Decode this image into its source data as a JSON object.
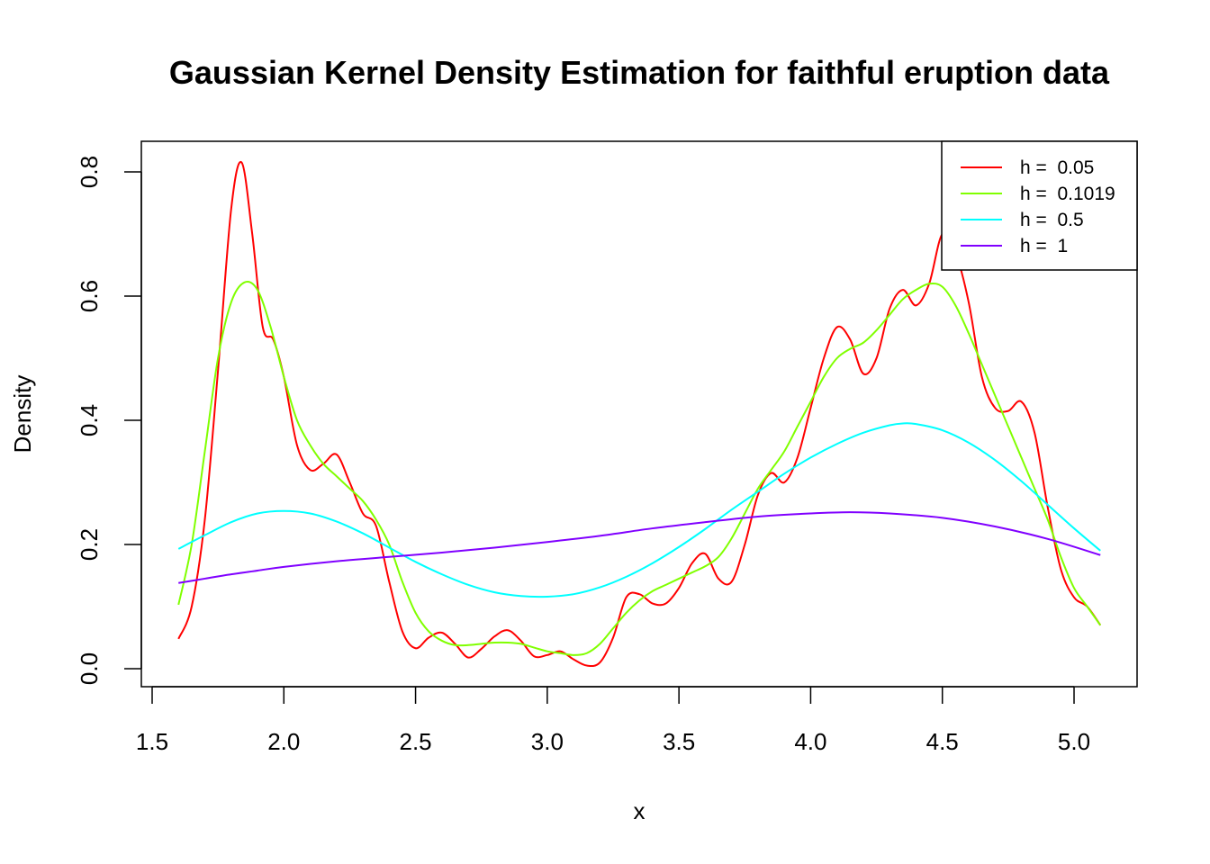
{
  "chart_data": {
    "type": "line",
    "title": "Gaussian Kernel Density Estimation for faithful eruption data",
    "xlabel": "x",
    "ylabel": "Density",
    "xlim": [
      1.6,
      5.1
    ],
    "ylim": [
      0.0,
      0.82
    ],
    "xticks": [
      1.5,
      2.0,
      2.5,
      3.0,
      3.5,
      4.0,
      4.5,
      5.0
    ],
    "xtick_labels": [
      "1.5",
      "2.0",
      "2.5",
      "3.0",
      "3.5",
      "4.0",
      "4.5",
      "5.0"
    ],
    "yticks": [
      0.0,
      0.2,
      0.4,
      0.6,
      0.8
    ],
    "ytick_labels": [
      "0.0",
      "0.2",
      "0.4",
      "0.6",
      "0.8"
    ],
    "grid": false,
    "legend_position": "top-right",
    "series": [
      {
        "name": "h =  0.05",
        "color": "#FF0000",
        "x": [
          1.6,
          1.65,
          1.7,
          1.75,
          1.8,
          1.84,
          1.88,
          1.92,
          1.96,
          2.0,
          2.05,
          2.1,
          2.15,
          2.2,
          2.25,
          2.3,
          2.35,
          2.4,
          2.45,
          2.5,
          2.55,
          2.6,
          2.65,
          2.7,
          2.75,
          2.8,
          2.85,
          2.9,
          2.95,
          3.0,
          3.05,
          3.1,
          3.15,
          3.2,
          3.25,
          3.3,
          3.35,
          3.4,
          3.45,
          3.5,
          3.55,
          3.6,
          3.65,
          3.7,
          3.75,
          3.8,
          3.85,
          3.9,
          3.95,
          4.0,
          4.05,
          4.1,
          4.15,
          4.2,
          4.25,
          4.3,
          4.35,
          4.4,
          4.45,
          4.5,
          4.55,
          4.6,
          4.65,
          4.7,
          4.75,
          4.8,
          4.85,
          4.9,
          4.95,
          5.0,
          5.05,
          5.1
        ],
        "y": [
          0.048,
          0.1,
          0.24,
          0.48,
          0.74,
          0.815,
          0.7,
          0.55,
          0.53,
          0.47,
          0.36,
          0.32,
          0.33,
          0.345,
          0.3,
          0.25,
          0.23,
          0.14,
          0.06,
          0.033,
          0.05,
          0.058,
          0.04,
          0.018,
          0.032,
          0.052,
          0.062,
          0.045,
          0.02,
          0.022,
          0.028,
          0.015,
          0.005,
          0.01,
          0.05,
          0.115,
          0.12,
          0.105,
          0.105,
          0.13,
          0.17,
          0.185,
          0.145,
          0.14,
          0.2,
          0.28,
          0.315,
          0.3,
          0.34,
          0.42,
          0.5,
          0.55,
          0.53,
          0.475,
          0.5,
          0.58,
          0.61,
          0.585,
          0.62,
          0.7,
          0.67,
          0.59,
          0.47,
          0.42,
          0.415,
          0.43,
          0.38,
          0.26,
          0.16,
          0.115,
          0.1,
          0.07
        ]
      },
      {
        "name": "h =  0.1019",
        "color": "#80FF00",
        "x": [
          1.6,
          1.65,
          1.7,
          1.75,
          1.8,
          1.85,
          1.9,
          1.95,
          2.0,
          2.05,
          2.1,
          2.15,
          2.2,
          2.25,
          2.3,
          2.35,
          2.4,
          2.45,
          2.5,
          2.55,
          2.6,
          2.65,
          2.7,
          2.75,
          2.8,
          2.85,
          2.9,
          2.95,
          3.0,
          3.05,
          3.1,
          3.15,
          3.2,
          3.25,
          3.3,
          3.35,
          3.4,
          3.45,
          3.5,
          3.55,
          3.6,
          3.65,
          3.7,
          3.75,
          3.8,
          3.85,
          3.9,
          3.95,
          4.0,
          4.05,
          4.1,
          4.15,
          4.2,
          4.25,
          4.3,
          4.35,
          4.4,
          4.45,
          4.5,
          4.55,
          4.6,
          4.65,
          4.7,
          4.75,
          4.8,
          4.85,
          4.9,
          4.95,
          5.0,
          5.05,
          5.1
        ],
        "y": [
          0.103,
          0.2,
          0.35,
          0.5,
          0.59,
          0.622,
          0.61,
          0.55,
          0.47,
          0.4,
          0.36,
          0.33,
          0.31,
          0.29,
          0.27,
          0.24,
          0.2,
          0.14,
          0.09,
          0.06,
          0.045,
          0.038,
          0.038,
          0.04,
          0.042,
          0.042,
          0.04,
          0.034,
          0.028,
          0.025,
          0.022,
          0.025,
          0.04,
          0.065,
          0.09,
          0.11,
          0.125,
          0.135,
          0.145,
          0.155,
          0.165,
          0.18,
          0.21,
          0.25,
          0.29,
          0.32,
          0.35,
          0.39,
          0.43,
          0.47,
          0.5,
          0.515,
          0.525,
          0.545,
          0.57,
          0.595,
          0.61,
          0.62,
          0.615,
          0.585,
          0.54,
          0.49,
          0.44,
          0.39,
          0.34,
          0.29,
          0.24,
          0.18,
          0.13,
          0.1,
          0.07
        ]
      },
      {
        "name": "h =  0.5",
        "color": "#00FFFF",
        "x": [
          1.6,
          1.7,
          1.8,
          1.9,
          2.0,
          2.1,
          2.2,
          2.3,
          2.4,
          2.5,
          2.6,
          2.7,
          2.8,
          2.9,
          3.0,
          3.1,
          3.2,
          3.3,
          3.4,
          3.5,
          3.6,
          3.7,
          3.8,
          3.9,
          4.0,
          4.1,
          4.2,
          4.3,
          4.35,
          4.4,
          4.5,
          4.6,
          4.7,
          4.8,
          4.9,
          5.0,
          5.1
        ],
        "y": [
          0.193,
          0.215,
          0.236,
          0.25,
          0.254,
          0.25,
          0.237,
          0.218,
          0.195,
          0.172,
          0.152,
          0.135,
          0.123,
          0.117,
          0.116,
          0.12,
          0.131,
          0.148,
          0.17,
          0.196,
          0.225,
          0.256,
          0.285,
          0.314,
          0.34,
          0.362,
          0.38,
          0.392,
          0.395,
          0.394,
          0.384,
          0.364,
          0.336,
          0.302,
          0.264,
          0.226,
          0.19
        ]
      },
      {
        "name": "h =  1",
        "color": "#8000FF",
        "x": [
          1.6,
          1.7,
          1.8,
          1.9,
          2.0,
          2.2,
          2.4,
          2.6,
          2.8,
          3.0,
          3.2,
          3.4,
          3.6,
          3.8,
          4.0,
          4.15,
          4.3,
          4.5,
          4.7,
          4.9,
          5.1
        ],
        "y": [
          0.138,
          0.145,
          0.152,
          0.158,
          0.164,
          0.173,
          0.18,
          0.187,
          0.195,
          0.204,
          0.214,
          0.226,
          0.236,
          0.245,
          0.25,
          0.252,
          0.25,
          0.243,
          0.229,
          0.209,
          0.183
        ]
      }
    ]
  }
}
